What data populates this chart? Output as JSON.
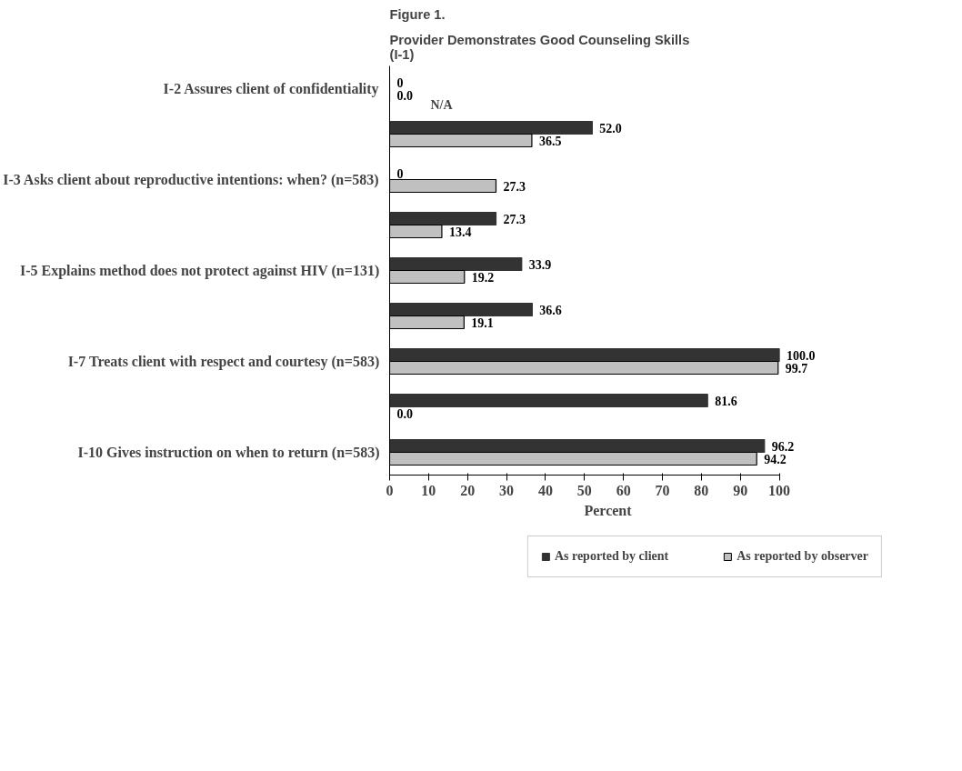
{
  "chart_data": {
    "type": "bar",
    "orientation": "horizontal",
    "title": "Figure 1.",
    "subtitle": "Provider Demonstrates Good Counseling Skills\n(I-1)",
    "xlabel": "Percent",
    "categories": [
      "I-2 Assures client of confidentiality",
      null,
      "I-3 Asks client about reproductive intentions: when? (n=583)",
      null,
      "I-5 Explains method does not protect against HIV (n=131)",
      null,
      "I-7 Treats client with respect and courtesy (n=583)",
      null,
      "I-10 Gives instruction on when to return (n=583)"
    ],
    "series": [
      {
        "name": "As reported by client",
        "color": "#333333",
        "values": [
          0,
          52.0,
          0,
          27.3,
          33.9,
          36.6,
          100.0,
          81.6,
          96.2
        ],
        "value_labels": [
          "0",
          "52.0",
          "0",
          "27.3",
          "33.9",
          "36.6",
          "100.0",
          "81.6",
          "96.2"
        ]
      },
      {
        "name": "As reported by observer",
        "color": "#c0c0c0",
        "values": [
          0.0,
          36.5,
          27.3,
          13.4,
          19.2,
          19.1,
          99.7,
          0.0,
          94.2
        ],
        "value_labels": [
          "0.0",
          "36.5",
          "27.3",
          "13.4",
          "19.2",
          "19.1",
          "99.7",
          "0.0",
          "94.2"
        ]
      }
    ],
    "xlim": [
      0,
      100
    ],
    "xticks": [
      0,
      10,
      20,
      30,
      40,
      50,
      60,
      70,
      80,
      90,
      100
    ],
    "grid": false,
    "legend": "bottom",
    "annotations": [
      "N/A"
    ]
  }
}
